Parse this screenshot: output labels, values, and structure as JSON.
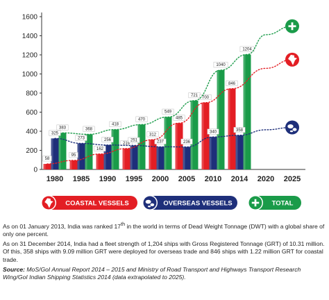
{
  "chart_data": {
    "type": "bar",
    "categories": [
      "1980",
      "1985",
      "1990",
      "1995",
      "2000",
      "2005",
      "2010",
      "2014"
    ],
    "x_ticks": [
      "1980",
      "1985",
      "1990",
      "1995",
      "2000",
      "2005",
      "2010",
      "2014",
      "2020",
      "2025"
    ],
    "y_ticks": [
      "0",
      "200",
      "400",
      "600",
      "800",
      "1000",
      "1200",
      "1400",
      "1600"
    ],
    "ylim": [
      0,
      1600
    ],
    "series": [
      {
        "name": "COASTAL VESSELS",
        "color": "#e31e24",
        "values": [
          58,
          95,
          162,
          219,
          312,
          485,
          700,
          846
        ],
        "labels": [
          "58",
          "95",
          "162",
          "219",
          "312",
          "485",
          "700",
          "846"
        ]
      },
      {
        "name": "OVERSEAS VESSELS",
        "color": "#1e2f7a",
        "values": [
          325,
          273,
          256,
          251,
          237,
          236,
          340,
          358
        ],
        "labels": [
          "325",
          "273",
          "256",
          "251",
          "237",
          "236",
          "340",
          "358"
        ]
      },
      {
        "name": "TOTAL",
        "color": "#1a9b49",
        "values": [
          383,
          368,
          418,
          470,
          549,
          721,
          1040,
          1204
        ],
        "labels": [
          "383",
          "368",
          "418",
          "470",
          "549",
          "721",
          "1040",
          "1204"
        ]
      }
    ],
    "extrapolated": {
      "coastal_2025": 1150,
      "overseas_2025": 440,
      "total_2025": 1500
    },
    "legend": [
      "COASTAL VESSELS",
      "OVERSEAS VESSELS",
      "TOTAL"
    ],
    "legend_placement": "bottom",
    "grid": false
  },
  "icons": {
    "coastal": "india-map-icon",
    "overseas": "globe-icon",
    "total": "plus-icon"
  },
  "notes": {
    "p1_before": "As on 01 January 2013, India was ranked 17",
    "p1_sup": "th",
    "p1_after": " in the world in terms of Dead Weight Tonnage (DWT) with a global share of only one percent.",
    "p2": "As on 31 December 2014, India had a fleet strength of 1,204 ships with Gross Registered Tonnage (GRT) of 10.31 million. Of this, 358 ships with 9.09 million GRT were deployed for overseas trade and 846 ships with 1.22 million GRT for coastal trade.",
    "source_label": "Source:",
    "source_text": " MoS/GoI Annual Report 2014 – 2015 and Ministry of Road Transport and Highways Transport Research Wing/GoI Indian Shipping Statistics 2014 (data extrapolated to 2025)."
  }
}
